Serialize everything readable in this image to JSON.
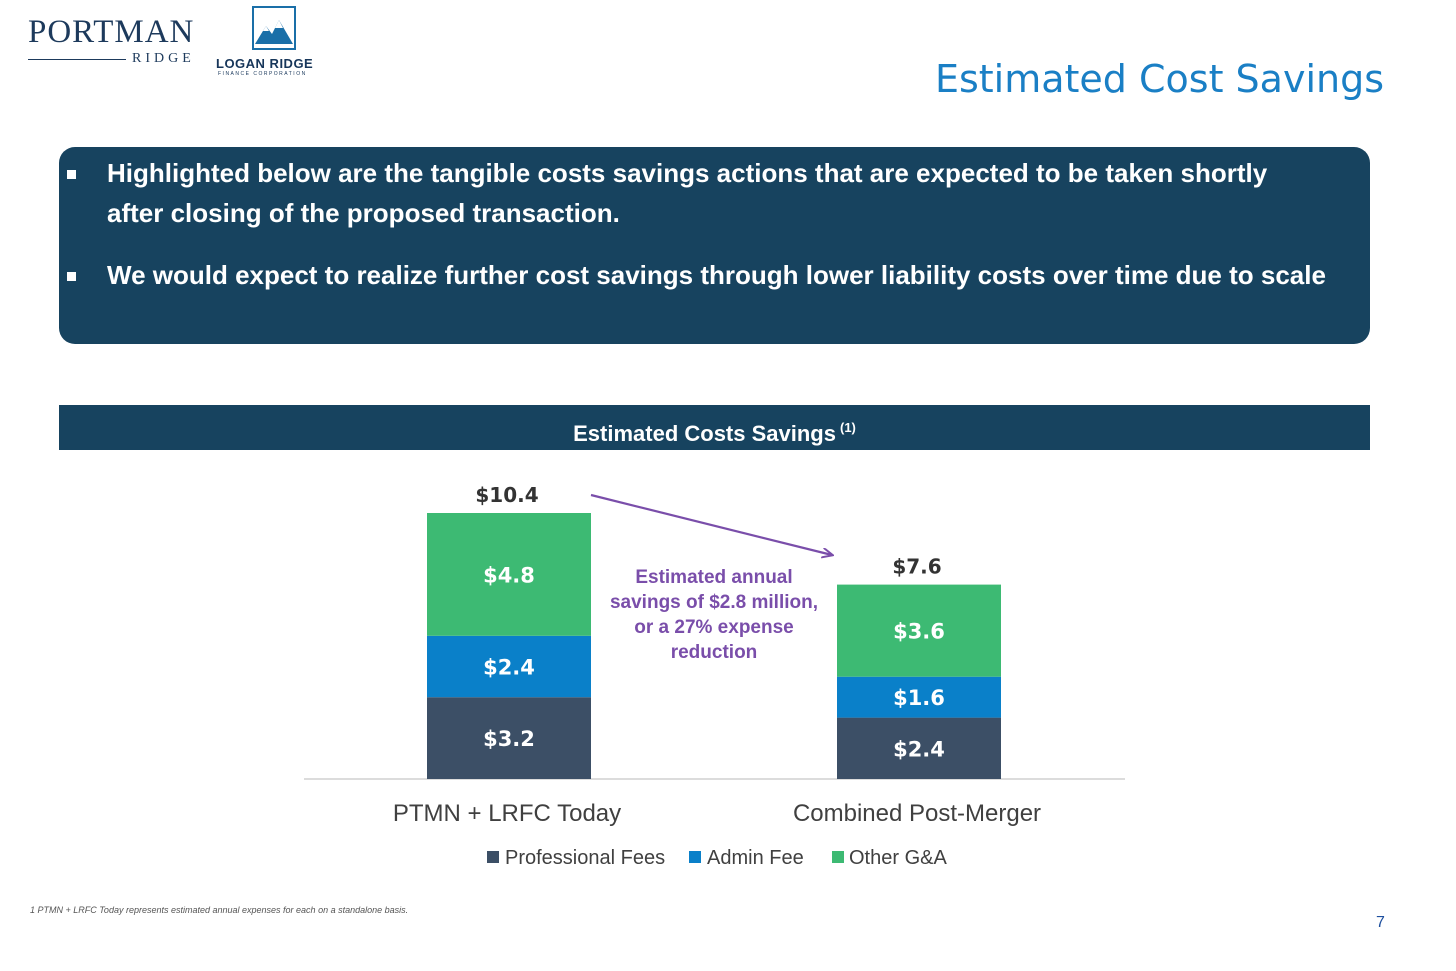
{
  "logos": {
    "portman_main": "PORTMAN",
    "portman_sub": "RIDGE",
    "logan_name": "LOGAN RIDGE",
    "logan_tag": "FINANCE CORPORATION"
  },
  "page_title": "Estimated Cost Savings",
  "info_box": {
    "bullets": [
      "Highlighted below are the tangible costs savings actions that are expected to be taken shortly after closing of the proposed transaction.",
      "We would expect to realize further cost savings through lower liability costs over time due to scale"
    ]
  },
  "chart_header": {
    "title": "Estimated Costs Savings",
    "superscript": "(1)"
  },
  "chart_data": {
    "type": "bar",
    "stacked": true,
    "categories": [
      "PTMN + LRFC Today",
      "Combined Post-Merger"
    ],
    "series": [
      {
        "name": "Professional Fees",
        "values": [
          3.2,
          2.4
        ],
        "labels": [
          "$3.2",
          "$2.4"
        ],
        "color": "#3c4f66"
      },
      {
        "name": "Admin Fee",
        "values": [
          2.4,
          1.6
        ],
        "labels": [
          "$2.4",
          "$1.6"
        ],
        "color": "#0a80c9"
      },
      {
        "name": "Other G&A",
        "values": [
          4.8,
          3.6
        ],
        "labels": [
          "$4.8",
          "$3.6"
        ],
        "color": "#3dba73"
      }
    ],
    "totals": [
      10.4,
      7.6
    ],
    "total_labels": [
      "$10.4",
      "$7.6"
    ],
    "ylim": [
      0,
      10.4
    ],
    "grid": false,
    "legend": "bottom",
    "annotation": {
      "lines": [
        "Estimated annual",
        "savings of $2.8 million,",
        "or a 27% expense",
        "reduction"
      ],
      "color": "#7a4eaa"
    },
    "arrow_color": "#7a4eaa"
  },
  "footnote": "1 PTMN + LRFC Today represents estimated annual expenses for each on a standalone basis.",
  "page_number": "7"
}
